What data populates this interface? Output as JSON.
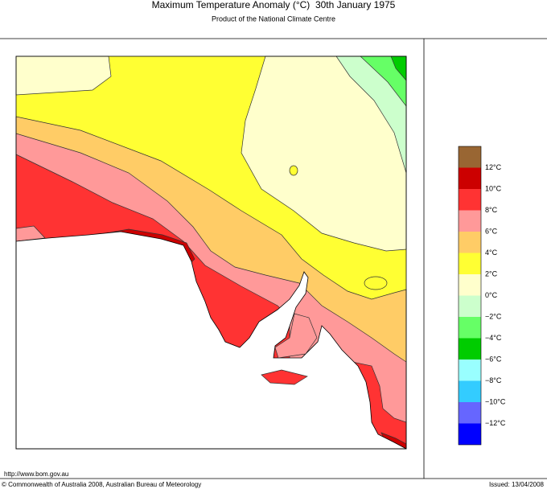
{
  "header": {
    "title": "Maximum Temperature Anomaly (°C)  30th January 1975",
    "subtitle": "Product of the National Climate Centre"
  },
  "legend": {
    "colors": [
      "#996633",
      "#cc0000",
      "#ff3333",
      "#ff9999",
      "#ffcc66",
      "#ffff33",
      "#ffffcc",
      "#ccffcc",
      "#66ff66",
      "#00cc00",
      "#99ffff",
      "#33ccff",
      "#6666ff",
      "#0000ff"
    ],
    "labels": [
      "12°C",
      "10°C",
      "8°C",
      "6°C",
      "4°C",
      "2°C",
      "0°C",
      "−2°C",
      "−4°C",
      "−6°C",
      "−8°C",
      "−10°C",
      "−12°C"
    ]
  },
  "footer": {
    "url": "http://www.bom.gov.au",
    "copyright": "© Commonwealth of Australia 2008, Australian Bureau of Meteorology",
    "issued": "Issued: 13/04/2008"
  }
}
